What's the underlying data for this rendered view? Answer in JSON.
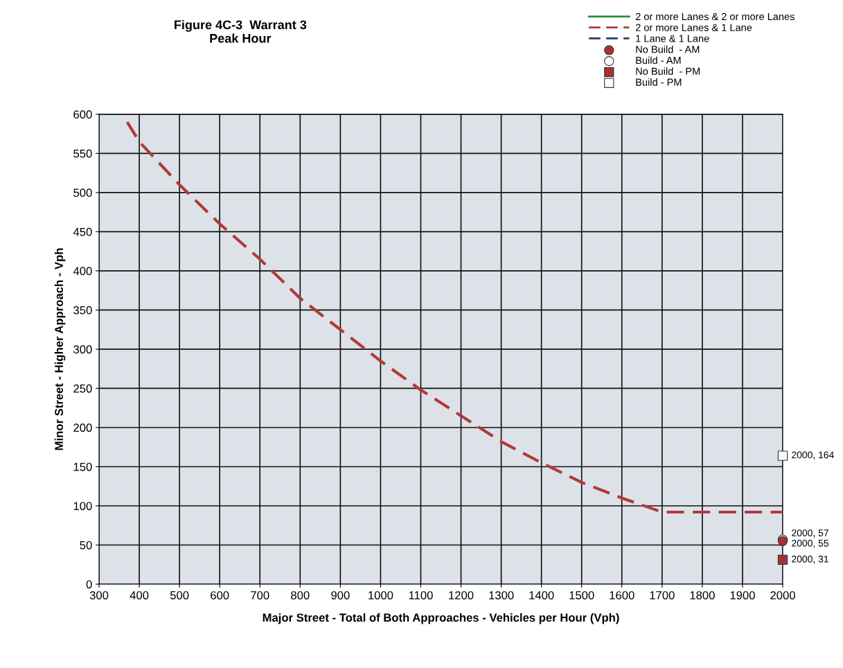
{
  "chart_data": {
    "type": "line",
    "title": "Figure 4C-3  Warrant 3\nPeak Hour",
    "xlabel": "Major Street - Total of Both Approaches - Vehicles per Hour (Vph)",
    "ylabel": "Minor Street - Higher Approach - Vph",
    "xlim": [
      300,
      2000
    ],
    "xticks": [
      300,
      400,
      500,
      600,
      700,
      800,
      900,
      1000,
      1100,
      1200,
      1300,
      1400,
      1500,
      1600,
      1700,
      1800,
      1900,
      2000
    ],
    "ylim": [
      0,
      600
    ],
    "yticks": [
      0,
      50,
      100,
      150,
      200,
      250,
      300,
      350,
      400,
      450,
      500,
      550,
      600
    ],
    "grid": true,
    "legend": "top right",
    "series": [
      {
        "name": "2 or more Lanes & 2 or more Lanes",
        "color": "#2e8b3e",
        "line_style": "solid"
      },
      {
        "name": "2 or more Lanes & 1 Lane",
        "color": "#b03a3a",
        "line_style": "dashed",
        "x": [
          370,
          400,
          500,
          600,
          700,
          800,
          900,
          1000,
          1100,
          1200,
          1300,
          1400,
          1500,
          1600,
          1700,
          1800,
          1900,
          2000
        ],
        "values": [
          590,
          565,
          510,
          460,
          415,
          365,
          325,
          285,
          248,
          215,
          182,
          155,
          130,
          110,
          92,
          92,
          92,
          92
        ]
      },
      {
        "name": "1 Lane & 1 Lane",
        "color": "#2a3a6a",
        "line_style": "dashed"
      },
      {
        "name": "No Build  - AM",
        "type": "scatter",
        "marker": "circle",
        "color": "#a83232",
        "x": [
          2000
        ],
        "values": [
          55
        ],
        "value_labels": [
          "2000, 55"
        ]
      },
      {
        "name": "Build - AM",
        "type": "scatter",
        "marker": "circle",
        "color": "#ffffff",
        "x": [
          2000
        ],
        "values": [
          57
        ],
        "value_labels": [
          "2000, 57"
        ]
      },
      {
        "name": "No Build  - PM",
        "type": "scatter",
        "marker": "square",
        "color": "#a83232",
        "x": [
          2000
        ],
        "values": [
          31
        ],
        "value_labels": [
          "2000, 31"
        ]
      },
      {
        "name": "Build - PM",
        "type": "scatter",
        "marker": "square",
        "color": "#ffffff",
        "x": [
          2000
        ],
        "values": [
          164
        ],
        "value_labels": [
          "2000, 164"
        ]
      }
    ]
  }
}
